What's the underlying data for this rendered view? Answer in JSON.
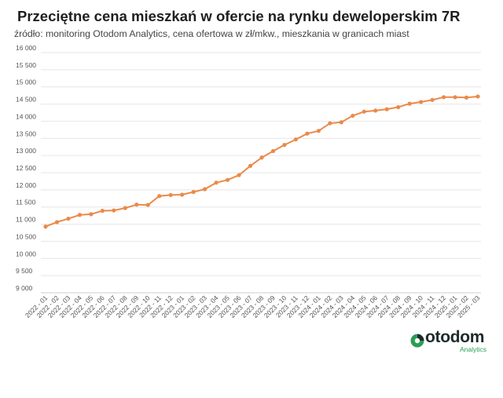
{
  "header": {
    "title": "Przeciętne cena mieszkań w ofercie na rynku deweloperskim 7R",
    "subtitle": "źródło: monitoring Otodom Analytics, cena ofertowa w zł/mkw., mieszkania w granicach miast"
  },
  "logo": {
    "word": "otodom",
    "sub": "Analytics"
  },
  "colors": {
    "line": "#ea8a4a",
    "grid": "#e6e6e6",
    "axis": "#cccccc"
  },
  "chart_data": {
    "type": "line",
    "ylim": [
      9000,
      16000
    ],
    "yticks": [
      9000,
      9500,
      10000,
      10500,
      11000,
      11500,
      12000,
      12500,
      13000,
      13500,
      14000,
      14500,
      15000,
      15500,
      16000
    ],
    "ytick_labels": [
      "9 000",
      "9 500",
      "10 000",
      "10 500",
      "11 000",
      "11 500",
      "12 000",
      "12 500",
      "13 000",
      "13 500",
      "14 000",
      "14 500",
      "15 000",
      "15 500",
      "16 000"
    ],
    "grid": true,
    "categories": [
      "2022 - 01",
      "2022 - 02",
      "2022 - 03",
      "2022 - 04",
      "2022 - 05",
      "2022 - 06",
      "2022 - 07",
      "2022 - 08",
      "2022 - 09",
      "2022 - 10",
      "2022 - 11",
      "2022 - 12",
      "2023 - 01",
      "2023 - 02",
      "2023 - 03",
      "2023 - 04",
      "2023 - 05",
      "2023 - 06",
      "2023 - 07",
      "2023 - 08",
      "2023 - 09",
      "2023 - 10",
      "2023 - 11",
      "2023 - 12",
      "2024 - 01",
      "2024 - 02",
      "2024 - 03",
      "2024 - 04",
      "2024 - 05",
      "2024 - 06",
      "2024 - 07",
      "2024 - 08",
      "2024 - 09",
      "2024 - 10",
      "2024 - 11",
      "2024 - 12",
      "2025 - 01",
      "2025 - 02",
      "2025 - 03"
    ],
    "series": [
      {
        "values": [
          10930,
          11060,
          11160,
          11270,
          11290,
          11390,
          11400,
          11470,
          11570,
          11560,
          11820,
          11850,
          11860,
          11940,
          12020,
          12210,
          12290,
          12430,
          12700,
          12940,
          13130,
          13310,
          13470,
          13640,
          13720,
          13940,
          13970,
          14160,
          14280,
          14310,
          14350,
          14410,
          14510,
          14560,
          14620,
          14700,
          14700,
          14690,
          14720
        ]
      }
    ]
  }
}
